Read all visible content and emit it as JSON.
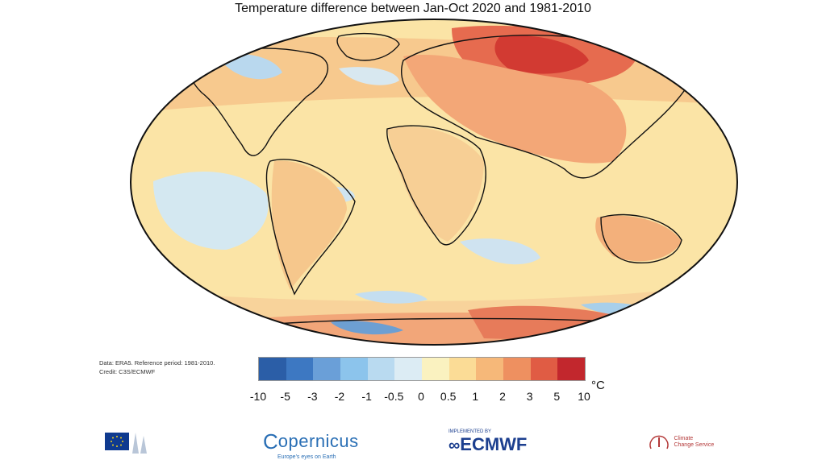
{
  "title": "Temperature difference between Jan-Oct 2020 and 1981-2010",
  "credits": {
    "line1": "Data: ERA5.  Reference period: 1981-2010.",
    "line2": "Credit: C3S/ECMWF"
  },
  "legend": {
    "unit": "°C",
    "ticks": [
      "-10",
      "-5",
      "-3",
      "-2",
      "-1",
      "-0.5",
      "0",
      "0.5",
      "1",
      "2",
      "3",
      "5",
      "10"
    ],
    "colors": [
      "#2b5ea7",
      "#3d78c2",
      "#6a9fd8",
      "#8cc4ec",
      "#b9daf0",
      "#dcecf4",
      "#faf2c0",
      "#fbdc96",
      "#f6b879",
      "#ee9060",
      "#e05c44",
      "#c2272d"
    ]
  },
  "logos": {
    "copernicus": "opernicus",
    "copernicus_tagline": "Europe's eyes on Earth",
    "ecmwf_small": "IMPLEMENTED BY",
    "ecmwf": "ECMWF",
    "ccs_line1": "Climate",
    "ccs_line2": "Change Service"
  },
  "icons": [
    "eu-flag-icon",
    "copernicus-c-icon",
    "ecmwf-logo-icon",
    "climate-change-service-icon"
  ]
}
